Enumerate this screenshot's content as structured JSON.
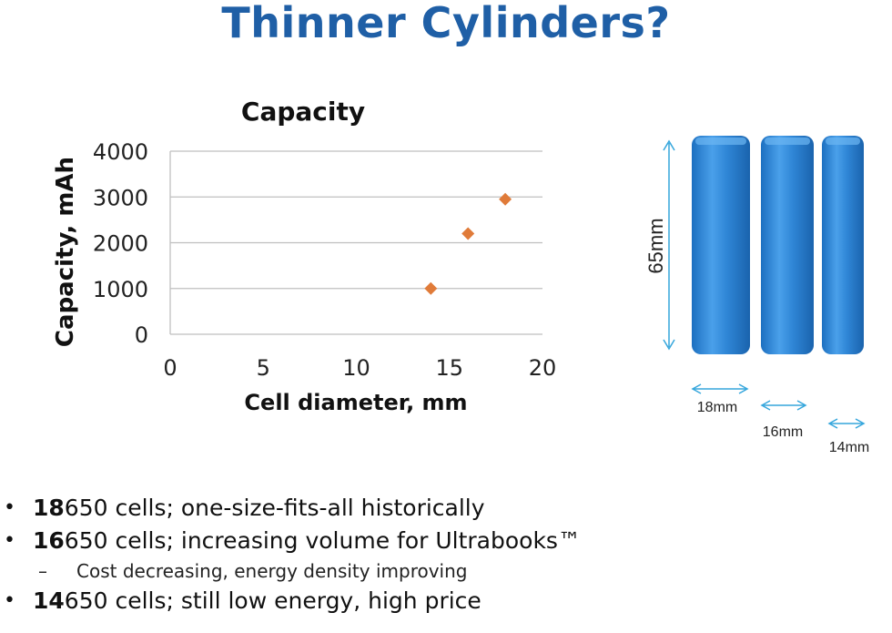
{
  "slide": {
    "title": "Thinner Cylinders?"
  },
  "chart_data": {
    "type": "scatter",
    "title": "Capacity",
    "xlabel": "Cell diameter, mm",
    "ylabel": "Capacity, mAh",
    "xlim": [
      0,
      20
    ],
    "ylim": [
      0,
      4000
    ],
    "xticks": [
      0,
      5,
      10,
      15,
      20
    ],
    "yticks": [
      0,
      1000,
      2000,
      3000,
      4000
    ],
    "grid": true,
    "legend": "none",
    "marker_color": "#e07b39",
    "points": [
      {
        "x": 14,
        "y": 1000
      },
      {
        "x": 16,
        "y": 2200
      },
      {
        "x": 18,
        "y": 2950
      }
    ]
  },
  "cells_figure": {
    "height_label": "65mm",
    "cells": [
      {
        "diameter_label": "18mm"
      },
      {
        "diameter_label": "16mm"
      },
      {
        "diameter_label": "14mm"
      }
    ],
    "cell_color": "#2f86d6",
    "arrow_color": "#35a6dc"
  },
  "bullets": [
    {
      "bold": "18",
      "text": "650 cells; one-size-fits-all historically"
    },
    {
      "bold": "16",
      "text": "650 cells; increasing volume for Ultrabooks™"
    },
    {
      "sub": "Cost decreasing, energy density improving"
    },
    {
      "bold": "14",
      "text": "650 cells; still low energy, high price"
    }
  ],
  "bullet_glyph": "•",
  "dash_glyph": "–"
}
